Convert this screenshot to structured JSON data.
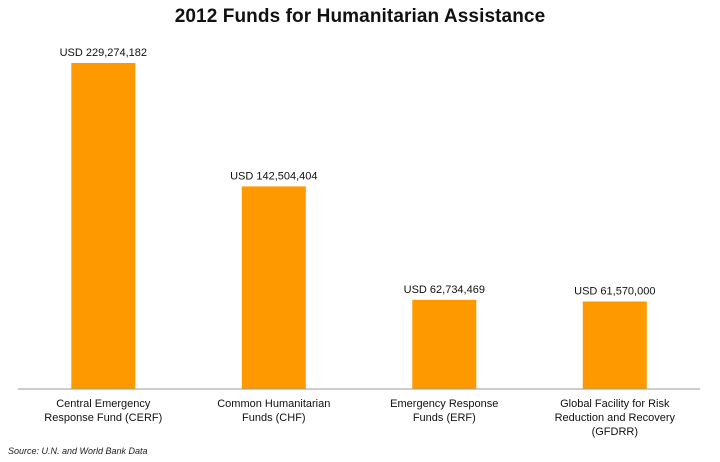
{
  "chart_data": {
    "type": "bar",
    "title": "2012 Funds for Humanitarian Assistance",
    "categories": [
      [
        "Central Emergency",
        "Response Fund (CERF)"
      ],
      [
        "Common Humanitarian",
        "Funds (CHF)"
      ],
      [
        "Emergency Response",
        "Funds (ERF)"
      ],
      [
        "Global Facility for Risk",
        "Reduction and Recovery",
        "(GFDRR)"
      ]
    ],
    "values": [
      229274182,
      142504404,
      62734469,
      61570000
    ],
    "data_labels": [
      "USD 229,274,182",
      "USD 142,504,404",
      "USD 62,734,469",
      "USD 61,570,000"
    ],
    "xlabel": "",
    "ylabel": "",
    "ylim": [
      0,
      229274182
    ],
    "grid": false,
    "legend": "none",
    "bar_color": "#ff9900",
    "axis_color": "#9a9a9a"
  },
  "source": "Source: U.N. and World Bank Data"
}
